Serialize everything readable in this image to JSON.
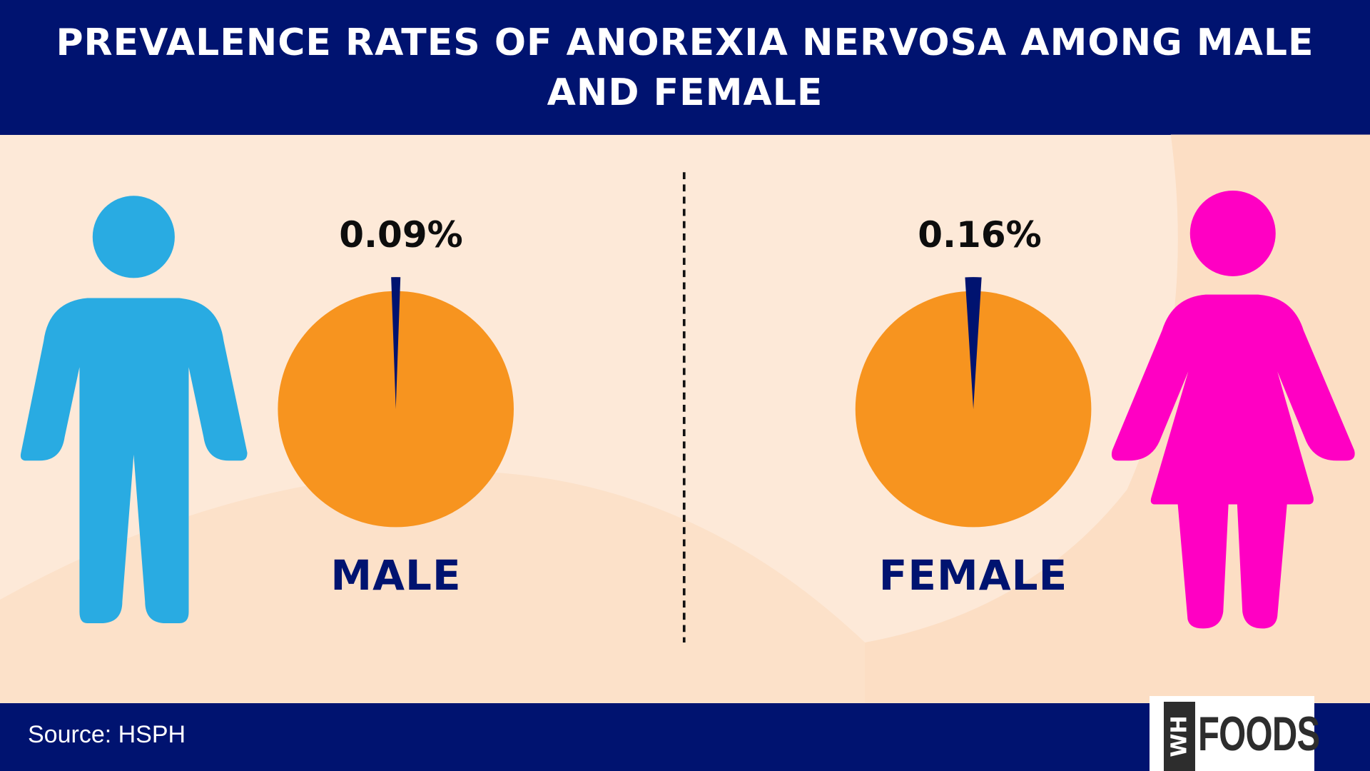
{
  "title": "PREVALENCE RATES OF ANOREXIA NERVOSA AMONG MALE AND FEMALE",
  "source": "Source: HSPH",
  "logo": {
    "mark": "WH",
    "text": "FOODS"
  },
  "colors": {
    "header": "#001370",
    "background": "#fde9d8",
    "pie": "#f7941f",
    "slice": "#001370",
    "male_figure": "#29abe2",
    "female_figure": "#ff00c3"
  },
  "chart_data": [
    {
      "type": "pie",
      "category": "MALE",
      "value_label": "0.09%",
      "values": [
        0.09,
        99.91
      ],
      "unit": "%"
    },
    {
      "type": "pie",
      "category": "FEMALE",
      "value_label": "0.16%",
      "values": [
        0.16,
        99.84
      ],
      "unit": "%"
    }
  ]
}
